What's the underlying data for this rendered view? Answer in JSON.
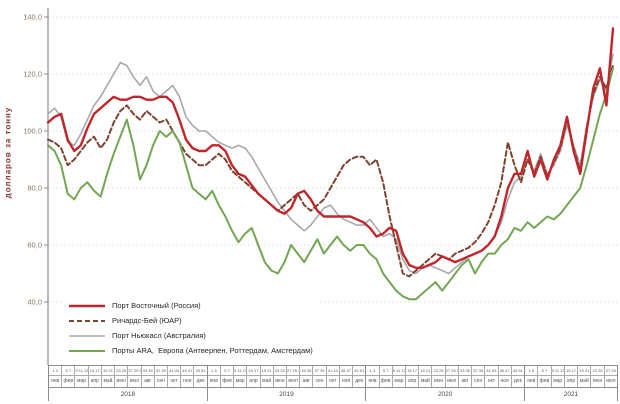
{
  "chart_data": {
    "type": "line",
    "title": "",
    "ylabel": "долларов  за  тонну",
    "ylim": [
      40,
      140
    ],
    "grid": "horizontal-dotted",
    "legend_position": "bottom-left-inside",
    "y_ticks": {
      "values": [
        140,
        120,
        100,
        80,
        60,
        40
      ],
      "labels": [
        "140,0",
        "120,0",
        "100,0",
        "80,0",
        "60,0",
        "40,0"
      ]
    },
    "x_axis": {
      "unit_rows": [
        "недели",
        "месяцы",
        "годы"
      ],
      "years": [
        {
          "label": "2018",
          "months": [
            {
              "weeks": "1 3",
              "name": "янв"
            },
            {
              "weeks": "5 7",
              "name": "фев"
            },
            {
              "weeks": "9 11 13",
              "name": "мар"
            },
            {
              "weeks": "15 17",
              "name": "апр"
            },
            {
              "weeks": "19 21",
              "name": "май"
            },
            {
              "weeks": "23 25",
              "name": "июн"
            },
            {
              "weeks": "27 29 31",
              "name": "июл"
            },
            {
              "weeks": "33 35",
              "name": "авг"
            },
            {
              "weeks": "37 39",
              "name": "сен"
            },
            {
              "weeks": "41 43",
              "name": "окт"
            },
            {
              "weeks": "45 47",
              "name": "ноя"
            },
            {
              "weeks": "49 51",
              "name": "дек"
            }
          ]
        },
        {
          "label": "2019",
          "months": [
            {
              "weeks": "1 3",
              "name": "янв"
            },
            {
              "weeks": "5 7",
              "name": "фев"
            },
            {
              "weeks": "9 11 13",
              "name": "мар"
            },
            {
              "weeks": "15 17",
              "name": "апр"
            },
            {
              "weeks": "19 21",
              "name": "май"
            },
            {
              "weeks": "23 25",
              "name": "июн"
            },
            {
              "weeks": "27 29 31",
              "name": "июл"
            },
            {
              "weeks": "33 35",
              "name": "авг"
            },
            {
              "weeks": "37 39",
              "name": "сен"
            },
            {
              "weeks": "41 43",
              "name": "окт"
            },
            {
              "weeks": "45 47",
              "name": "ноя"
            },
            {
              "weeks": "49 51",
              "name": "дек"
            }
          ]
        },
        {
          "label": "2020",
          "months": [
            {
              "weeks": "1 3",
              "name": "янв"
            },
            {
              "weeks": "5 7",
              "name": "фев"
            },
            {
              "weeks": "9 11 13",
              "name": "мар"
            },
            {
              "weeks": "15 17",
              "name": "апр"
            },
            {
              "weeks": "19 21",
              "name": "май"
            },
            {
              "weeks": "23 25",
              "name": "июн"
            },
            {
              "weeks": "27 29 31",
              "name": "июл"
            },
            {
              "weeks": "33 35",
              "name": "авг"
            },
            {
              "weeks": "37 39",
              "name": "сен"
            },
            {
              "weeks": "41 43",
              "name": "окт"
            },
            {
              "weeks": "45 47",
              "name": "ноя"
            },
            {
              "weeks": "49 51",
              "name": "дек"
            }
          ]
        },
        {
          "label": "2021",
          "months": [
            {
              "weeks": "1 3",
              "name": "янв"
            },
            {
              "weeks": "5 7",
              "name": "фев"
            },
            {
              "weeks": "9 11 13",
              "name": "мар"
            },
            {
              "weeks": "15 17",
              "name": "апр"
            },
            {
              "weeks": "19 21",
              "name": "май"
            },
            {
              "weeks": "23 25",
              "name": "июн"
            },
            {
              "weeks": "27 29",
              "name": "июл"
            }
          ]
        }
      ]
    },
    "series": [
      {
        "name": "Порт Восточный (Россия)",
        "color": "#c0262c",
        "width": 2.4,
        "dash": "",
        "values": [
          103,
          105,
          106,
          97,
          93,
          95,
          101,
          106,
          108,
          110,
          112,
          111,
          111,
          112,
          112,
          111,
          111,
          112,
          112,
          110,
          104,
          97,
          94,
          93,
          93,
          95,
          95,
          93,
          88,
          85,
          84,
          81,
          78,
          76,
          74,
          72,
          71,
          73,
          78,
          79,
          76,
          72,
          70,
          70,
          70,
          70,
          70,
          69,
          68,
          66,
          63,
          64,
          66,
          65,
          57,
          53,
          52,
          52,
          53,
          54,
          56,
          55,
          54,
          55,
          56,
          57,
          58,
          60,
          63,
          70,
          80,
          85,
          85,
          93,
          84,
          90,
          83,
          90,
          95,
          105,
          93,
          85,
          100,
          115,
          122,
          109,
          136
        ]
      },
      {
        "name": "Ричардс-Бей (ЮАР)",
        "color": "#7e432e",
        "width": 2,
        "dash": "5,3",
        "values": [
          97,
          96,
          94,
          88,
          90,
          93,
          96,
          98,
          94,
          97,
          103,
          107,
          109,
          106,
          104,
          107,
          105,
          103,
          104,
          100,
          96,
          92,
          90,
          88,
          88,
          90,
          92,
          90,
          86,
          84,
          82,
          80,
          78,
          76,
          74,
          72,
          74,
          76,
          78,
          74,
          72,
          74,
          76,
          80,
          84,
          88,
          90,
          91,
          91,
          88,
          90,
          82,
          70,
          60,
          50,
          49,
          51,
          53,
          55,
          57,
          56,
          55,
          57,
          58,
          59,
          61,
          64,
          68,
          74,
          82,
          96,
          88,
          82,
          90,
          85,
          91,
          84,
          89,
          94,
          104,
          94,
          86,
          101,
          113,
          119,
          115,
          123
        ]
      },
      {
        "name": "Порт Ньюкасл (Австралия)",
        "color": "#a8a8ac",
        "width": 1.6,
        "dash": "",
        "values": [
          106,
          108,
          105,
          96,
          95,
          99,
          104,
          109,
          112,
          116,
          120,
          124,
          123,
          119,
          116,
          119,
          114,
          112,
          114,
          116,
          112,
          105,
          102,
          100,
          100,
          98,
          96,
          95,
          94,
          95,
          94,
          91,
          87,
          83,
          79,
          75,
          72,
          69,
          67,
          65,
          67,
          70,
          73,
          74,
          71,
          69,
          68,
          67,
          67,
          69,
          66,
          63,
          64,
          62,
          55,
          51,
          50,
          52,
          53,
          52,
          51,
          50,
          52,
          54,
          56,
          57,
          58,
          60,
          63,
          68,
          76,
          82,
          84,
          90,
          86,
          92,
          85,
          88,
          93,
          102,
          95,
          88,
          102,
          112,
          118,
          114,
          127
        ]
      },
      {
        "name": "Порты ARA,  Европа (Антверпен, Роттердам, Амстердам)",
        "color": "#72a653",
        "width": 2,
        "dash": "",
        "values": [
          95,
          93,
          88,
          78,
          76,
          80,
          82,
          79,
          77,
          85,
          92,
          98,
          104,
          95,
          83,
          88,
          95,
          100,
          98,
          100,
          96,
          88,
          80,
          78,
          76,
          79,
          74,
          70,
          65,
          61,
          64,
          66,
          60,
          54,
          51,
          50,
          54,
          60,
          57,
          54,
          58,
          62,
          57,
          60,
          63,
          60,
          58,
          60,
          60,
          57,
          55,
          50,
          47,
          44,
          42,
          41,
          41,
          43,
          45,
          47,
          44,
          47,
          50,
          53,
          55,
          50,
          54,
          57,
          57,
          60,
          62,
          66,
          65,
          68,
          66,
          68,
          70,
          69,
          71,
          74,
          77,
          80,
          88,
          97,
          106,
          113,
          122
        ]
      }
    ],
    "draw_order": [
      2,
      1,
      3,
      0
    ],
    "colors": {
      "grid": "#dcdcdc",
      "axis": "#8c8c8c",
      "tick_text": "#8a7668",
      "y_title": "#8b3a3a",
      "legend_text": "#25252e"
    }
  }
}
